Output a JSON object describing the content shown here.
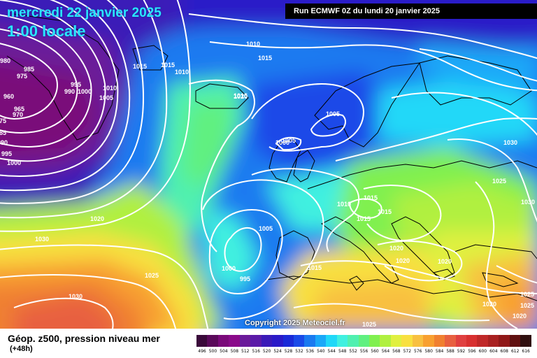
{
  "title": {
    "date": "mercredi 22 janvier 2025",
    "time": "1:00 locale"
  },
  "run_info": "Run ECMWF 0Z du lundi 20 janvier 2025",
  "copyright": "Copyright 2025 Meteociel.fr",
  "product": {
    "name": "Géop. z500, pression niveau mer",
    "lead": "(+48h)"
  },
  "colors": {
    "isobar": "#ffffff",
    "coastline": "#000000",
    "title_text": "#29e6ff",
    "header_bg": "#000000"
  },
  "legend_scale": [
    {
      "value": "496",
      "color": "#3a0a3a"
    },
    {
      "value": "500",
      "color": "#5a0a5a"
    },
    {
      "value": "504",
      "color": "#7a0a7a"
    },
    {
      "value": "508",
      "color": "#8a0a8a"
    },
    {
      "value": "512",
      "color": "#6a1a9a"
    },
    {
      "value": "516",
      "color": "#5a1aa8"
    },
    {
      "value": "520",
      "color": "#3a1ab8"
    },
    {
      "value": "524",
      "color": "#2a1ac8"
    },
    {
      "value": "528",
      "color": "#1a2ad8"
    },
    {
      "value": "532",
      "color": "#1a4ae8"
    },
    {
      "value": "536",
      "color": "#1a7af0"
    },
    {
      "value": "540",
      "color": "#1aa8f8"
    },
    {
      "value": "544",
      "color": "#20d8f8"
    },
    {
      "value": "548",
      "color": "#40f0e0"
    },
    {
      "value": "552",
      "color": "#50f0b0"
    },
    {
      "value": "556",
      "color": "#60f080"
    },
    {
      "value": "560",
      "color": "#80f050"
    },
    {
      "value": "564",
      "color": "#b0f040"
    },
    {
      "value": "568",
      "color": "#e0f040"
    },
    {
      "value": "572",
      "color": "#f8e040"
    },
    {
      "value": "576",
      "color": "#f8c040"
    },
    {
      "value": "580",
      "color": "#f8a030"
    },
    {
      "value": "584",
      "color": "#f08030"
    },
    {
      "value": "588",
      "color": "#e86040"
    },
    {
      "value": "592",
      "color": "#e04040"
    },
    {
      "value": "596",
      "color": "#d83030"
    },
    {
      "value": "600",
      "color": "#c02828"
    },
    {
      "value": "604",
      "color": "#a82020"
    },
    {
      "value": "608",
      "color": "#901818"
    },
    {
      "value": "612",
      "color": "#601010"
    },
    {
      "value": "616",
      "color": "#301010"
    }
  ],
  "isobar_labels": [
    "980",
    "985",
    "975",
    "960",
    "965",
    "970",
    "985",
    "975",
    "990",
    "995",
    "1000",
    "995",
    "990",
    "1000",
    "1005",
    "1010",
    "1015",
    "1015",
    "1015",
    "1010",
    "1010",
    "1015",
    "1020",
    "1005",
    "1005",
    "1000",
    "1010",
    "1015",
    "1015",
    "1015",
    "1020",
    "1030",
    "1005",
    "1000",
    "995",
    "1015",
    "1020",
    "1020",
    "1025",
    "1030",
    "1025",
    "1030",
    "1025",
    "1020",
    "1025",
    "1020",
    "1020",
    "1025"
  ]
}
